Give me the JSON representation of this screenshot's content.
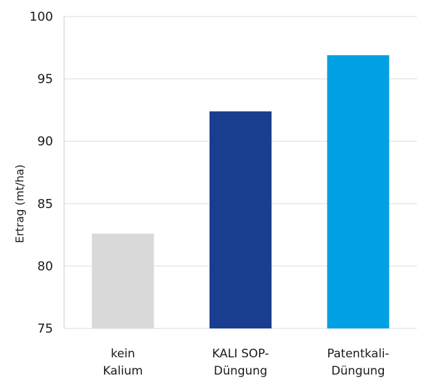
{
  "chart_data": {
    "type": "bar",
    "title": "",
    "xlabel": "",
    "ylabel": "Ertrag (mt/ha)",
    "ylim": [
      75,
      100
    ],
    "yticks": [
      "75",
      "80",
      "85",
      "90",
      "95",
      "100"
    ],
    "grid": true,
    "legend": "none",
    "categories": [
      [
        "kein",
        "Kalium"
      ],
      [
        "KALI SOP-",
        "Düngung"
      ],
      [
        "Patentkali-",
        "Düngung"
      ]
    ],
    "values": [
      82.6,
      92.4,
      96.9
    ],
    "colors": [
      "#d9d9d9",
      "#1a3e8f",
      "#00a0e3"
    ]
  }
}
